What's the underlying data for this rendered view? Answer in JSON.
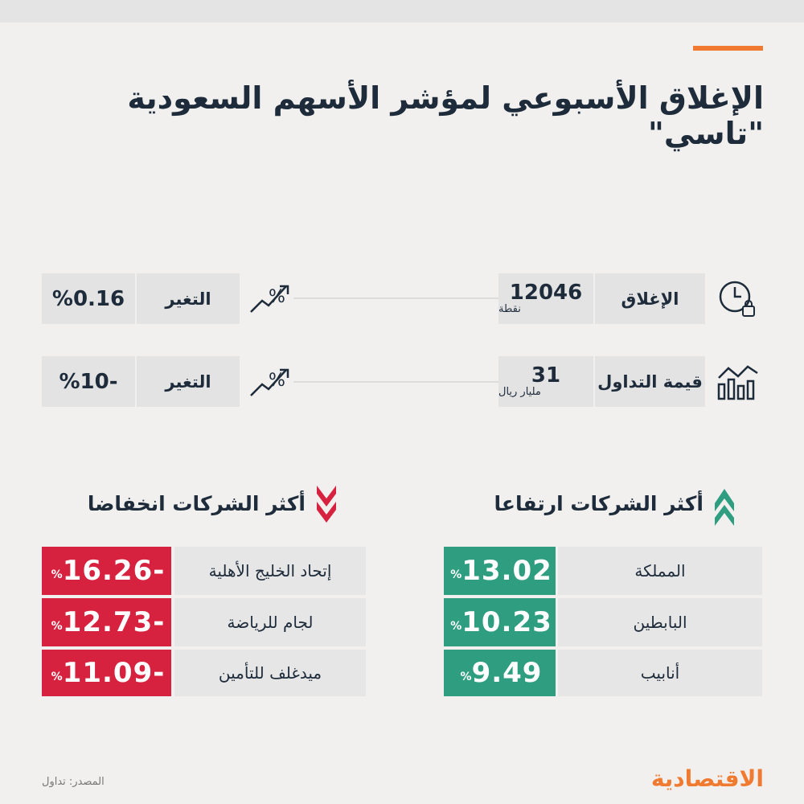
{
  "header": {
    "title": "الإغلاق الأسبوعي لمؤشر الأسهم السعودية \"تاسي\""
  },
  "stats": [
    {
      "label": "الإغلاق",
      "value": "12046",
      "unit": "نقطة",
      "change_label": "التغير",
      "change": "%0.16"
    },
    {
      "label": "قيمة التداول",
      "value": "31",
      "unit": "مليار ريال",
      "change_label": "التغير",
      "change": "%10-"
    }
  ],
  "gainers": {
    "title": "أكثر الشركات ارتفاعا",
    "rows": [
      {
        "name": "المملكة",
        "value": "13.02",
        "unit": "%"
      },
      {
        "name": "البابطين",
        "value": "10.23",
        "unit": "%"
      },
      {
        "name": "أنابيب",
        "value": "9.49",
        "unit": "%"
      }
    ]
  },
  "losers": {
    "title": "أكثر الشركات انخفاضا",
    "rows": [
      {
        "name": "إتحاد الخليج الأهلية",
        "value": "16.26-",
        "unit": "%"
      },
      {
        "name": "لجام للرياضة",
        "value": "12.73-",
        "unit": "%"
      },
      {
        "name": "ميدغلف للتأمين",
        "value": "11.09-",
        "unit": "%"
      }
    ]
  },
  "footer": {
    "source": "المصدر: تداول",
    "logo": "الاقتصادية"
  }
}
